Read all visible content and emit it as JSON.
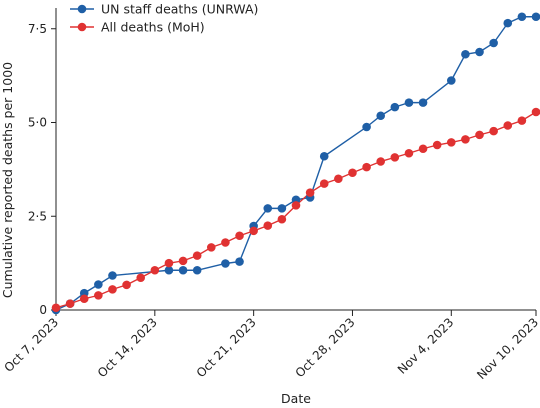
{
  "chart_data": {
    "type": "line",
    "xlabel": "Date",
    "ylabel": "Cumulative reported deaths per 1000",
    "ylim": [
      0,
      8
    ],
    "xlim": [
      "2023-10-07",
      "2023-11-10"
    ],
    "y_ticks": [
      {
        "value": 0,
        "label": "0"
      },
      {
        "value": 2.5,
        "label": "2·5"
      },
      {
        "value": 5,
        "label": "5·0"
      },
      {
        "value": 7.5,
        "label": "7·5"
      }
    ],
    "x_ticks": [
      {
        "date": "2023-10-07",
        "label": "Oct 7, 2023"
      },
      {
        "date": "2023-10-14",
        "label": "Oct 14, 2023"
      },
      {
        "date": "2023-10-21",
        "label": "Oct 21, 2023"
      },
      {
        "date": "2023-10-28",
        "label": "Oct 28, 2023"
      },
      {
        "date": "2023-11-04",
        "label": "Nov 4, 2023"
      },
      {
        "date": "2023-11-10",
        "label": "Nov 10, 2023"
      }
    ],
    "legend_position": "top-left",
    "grid": false,
    "series": [
      {
        "name": "UN staff deaths (UNRWA)",
        "color": "#1f5fa6",
        "points": [
          {
            "x": "2023-10-07",
            "y": 0.0
          },
          {
            "x": "2023-10-08",
            "y": 0.17
          },
          {
            "x": "2023-10-09",
            "y": 0.45
          },
          {
            "x": "2023-10-10",
            "y": 0.68
          },
          {
            "x": "2023-10-11",
            "y": 0.92
          },
          {
            "x": "2023-10-15",
            "y": 1.06
          },
          {
            "x": "2023-10-16",
            "y": 1.06
          },
          {
            "x": "2023-10-17",
            "y": 1.06
          },
          {
            "x": "2023-10-19",
            "y": 1.24
          },
          {
            "x": "2023-10-20",
            "y": 1.29
          },
          {
            "x": "2023-10-21",
            "y": 2.24
          },
          {
            "x": "2023-10-22",
            "y": 2.71
          },
          {
            "x": "2023-10-23",
            "y": 2.71
          },
          {
            "x": "2023-10-24",
            "y": 2.94
          },
          {
            "x": "2023-10-25",
            "y": 3.0
          },
          {
            "x": "2023-10-26",
            "y": 4.1
          },
          {
            "x": "2023-10-29",
            "y": 4.88
          },
          {
            "x": "2023-10-30",
            "y": 5.18
          },
          {
            "x": "2023-10-31",
            "y": 5.41
          },
          {
            "x": "2023-11-01",
            "y": 5.53
          },
          {
            "x": "2023-11-02",
            "y": 5.53
          },
          {
            "x": "2023-11-04",
            "y": 6.12
          },
          {
            "x": "2023-11-05",
            "y": 6.82
          },
          {
            "x": "2023-11-06",
            "y": 6.88
          },
          {
            "x": "2023-11-07",
            "y": 7.12
          },
          {
            "x": "2023-11-08",
            "y": 7.65
          },
          {
            "x": "2023-11-09",
            "y": 7.82
          },
          {
            "x": "2023-11-10",
            "y": 7.82
          }
        ]
      },
      {
        "name": "All deaths (MoH)",
        "color": "#e03232",
        "points": [
          {
            "x": "2023-10-07",
            "y": 0.06
          },
          {
            "x": "2023-10-08",
            "y": 0.17
          },
          {
            "x": "2023-10-09",
            "y": 0.3
          },
          {
            "x": "2023-10-10",
            "y": 0.39
          },
          {
            "x": "2023-10-11",
            "y": 0.55
          },
          {
            "x": "2023-10-12",
            "y": 0.67
          },
          {
            "x": "2023-10-13",
            "y": 0.86
          },
          {
            "x": "2023-10-14",
            "y": 1.06
          },
          {
            "x": "2023-10-15",
            "y": 1.25
          },
          {
            "x": "2023-10-16",
            "y": 1.31
          },
          {
            "x": "2023-10-17",
            "y": 1.45
          },
          {
            "x": "2023-10-18",
            "y": 1.67
          },
          {
            "x": "2023-10-19",
            "y": 1.8
          },
          {
            "x": "2023-10-20",
            "y": 1.98
          },
          {
            "x": "2023-10-21",
            "y": 2.11
          },
          {
            "x": "2023-10-22",
            "y": 2.25
          },
          {
            "x": "2023-10-23",
            "y": 2.42
          },
          {
            "x": "2023-10-24",
            "y": 2.79
          },
          {
            "x": "2023-10-25",
            "y": 3.13
          },
          {
            "x": "2023-10-26",
            "y": 3.37
          },
          {
            "x": "2023-10-27",
            "y": 3.5
          },
          {
            "x": "2023-10-28",
            "y": 3.66
          },
          {
            "x": "2023-10-29",
            "y": 3.81
          },
          {
            "x": "2023-10-30",
            "y": 3.96
          },
          {
            "x": "2023-10-31",
            "y": 4.07
          },
          {
            "x": "2023-11-01",
            "y": 4.18
          },
          {
            "x": "2023-11-02",
            "y": 4.3
          },
          {
            "x": "2023-11-03",
            "y": 4.4
          },
          {
            "x": "2023-11-04",
            "y": 4.47
          },
          {
            "x": "2023-11-05",
            "y": 4.55
          },
          {
            "x": "2023-11-06",
            "y": 4.67
          },
          {
            "x": "2023-11-07",
            "y": 4.77
          },
          {
            "x": "2023-11-08",
            "y": 4.92
          },
          {
            "x": "2023-11-09",
            "y": 5.05
          },
          {
            "x": "2023-11-10",
            "y": 5.28
          }
        ]
      }
    ]
  }
}
